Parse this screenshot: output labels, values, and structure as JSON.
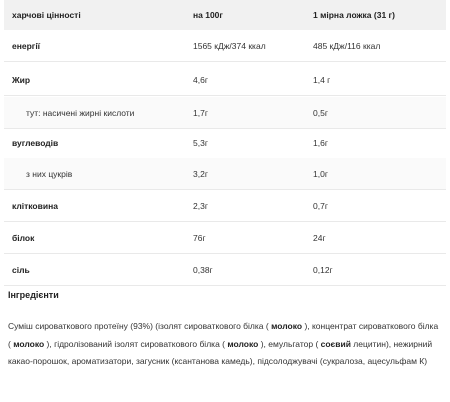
{
  "table": {
    "headers": {
      "name": "харчові цінності",
      "per100": "на 100г",
      "perServing": "1 мірна ложка (31 г)"
    },
    "rows": [
      {
        "name": "енергії",
        "per100": "1565 кДж/374 ккал",
        "perServing": "485 кДж/116 ккал",
        "kind": "main"
      },
      {
        "name": "Жир",
        "per100": "4,6г",
        "perServing": "1,4 г",
        "kind": "main"
      },
      {
        "name": "тут: насичені жирні кислоти",
        "per100": "1,7г",
        "perServing": "0,5г",
        "kind": "sub"
      },
      {
        "name": "вуглеводів",
        "per100": "5,3г",
        "perServing": "1,6г",
        "kind": "main"
      },
      {
        "name": "з них цукрів",
        "per100": "3,2г",
        "perServing": "1,0г",
        "kind": "sub"
      },
      {
        "name": "клітковина",
        "per100": "2,3г",
        "perServing": "0,7г",
        "kind": "main"
      },
      {
        "name": "білок",
        "per100": "76г",
        "perServing": "24г",
        "kind": "main"
      },
      {
        "name": "сіль",
        "per100": "0,38г",
        "perServing": "0,12г",
        "kind": "main"
      }
    ]
  },
  "ingredients": {
    "title": "Інгредієнти",
    "segments": [
      {
        "text": "Суміш сироваткового протеїну (93%) (ізолят сироваткового білка ( ",
        "bold": false
      },
      {
        "text": "молоко",
        "bold": true
      },
      {
        "text": " ), концентрат сироваткового білка ( ",
        "bold": false
      },
      {
        "text": "молоко",
        "bold": true
      },
      {
        "text": " ), гідролізований ізолят сироваткового білка ( ",
        "bold": false
      },
      {
        "text": "молоко",
        "bold": true
      },
      {
        "text": " ), емульгатор ( ",
        "bold": false
      },
      {
        "text": "соєвий",
        "bold": true
      },
      {
        "text": " лецитин), нежирний какао-порошок, ароматизатори, загусник (ксантанова камедь), підсолоджувачі (сукралоза, ацесульфам К)",
        "bold": false
      }
    ]
  }
}
